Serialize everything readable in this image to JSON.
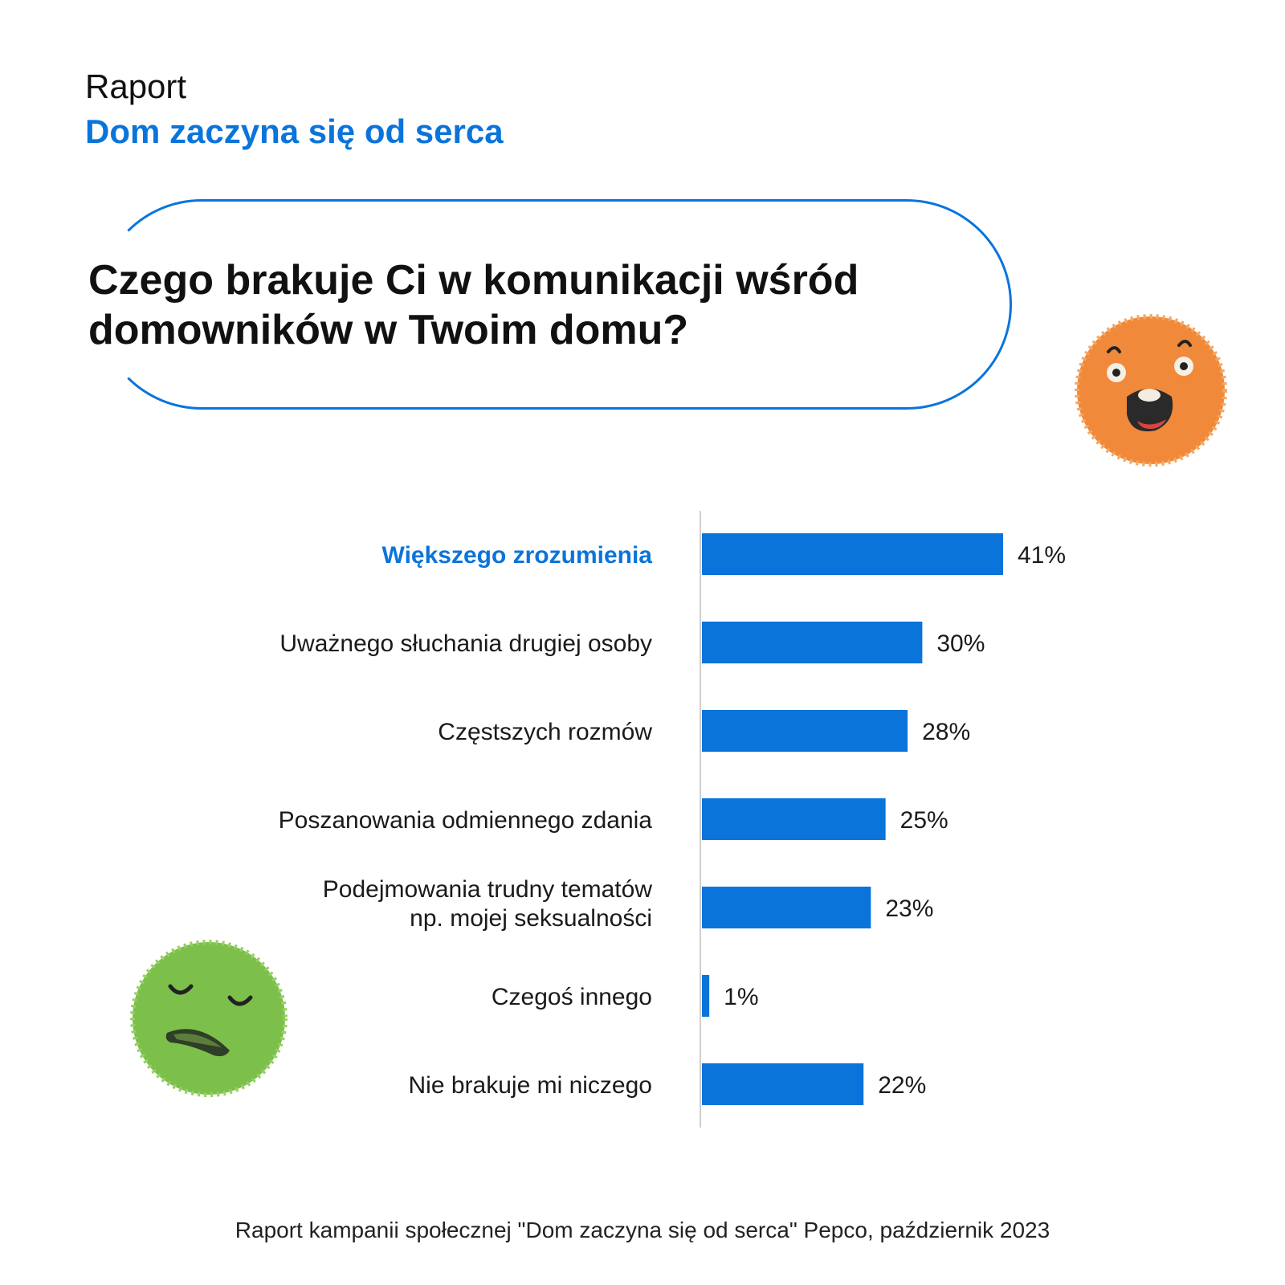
{
  "header": {
    "report_label": "Raport",
    "report_title": "Dom zaczyna się od serca"
  },
  "question": "Czego brakuje Ci w komunikacji wśród domowników w Twoim domu?",
  "chart_data": {
    "type": "bar",
    "orientation": "horizontal",
    "categories": [
      [
        "Większego zrozumienia"
      ],
      [
        "Uważnego słuchania drugiej osoby"
      ],
      [
        "Częstszych rozmów"
      ],
      [
        "Poszanowania odmiennego zdania"
      ],
      [
        "Podejmowania trudny tematów",
        "np. mojej seksualności"
      ],
      [
        "Czegoś innego"
      ],
      [
        "Nie brakuje mi niczego"
      ]
    ],
    "values": [
      41,
      30,
      28,
      25,
      23,
      1,
      22
    ],
    "value_labels": [
      "41%",
      "30%",
      "28%",
      "25%",
      "23%",
      "1%",
      "22%"
    ],
    "highlight_index": 0,
    "xlim": [
      0,
      41
    ],
    "grid": false,
    "colors": {
      "bar": "#0a74db",
      "highlight_label": "#0a74db",
      "label": "#1a1a1a",
      "axis": "#cfcfcf"
    }
  },
  "decorations": {
    "top_right": "orange-surprised-face-icon",
    "bottom_left": "green-sad-face-icon"
  },
  "footer": "Raport kampanii społecznej \"Dom zaczyna się od serca\" Pepco, październik 2023"
}
